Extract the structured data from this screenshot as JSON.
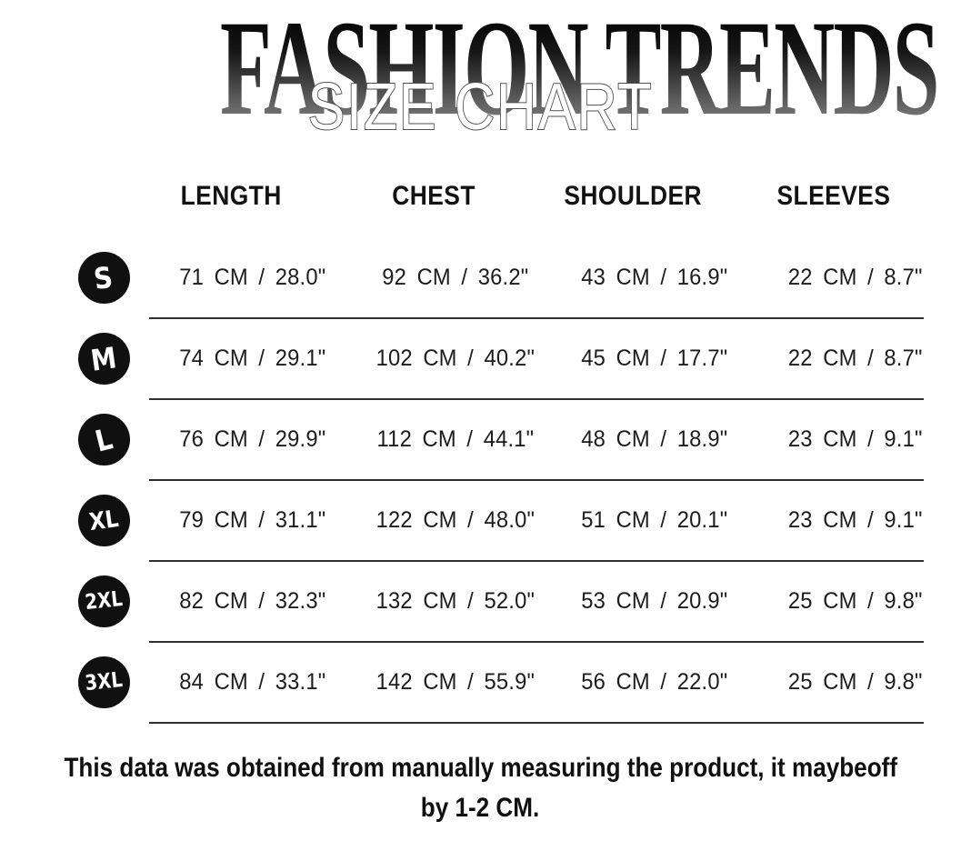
{
  "header": {
    "title": "FASHION TRENDS",
    "subtitle": "SIZE CHART"
  },
  "table": {
    "columns": [
      "LENGTH",
      "CHEST",
      "SHOULDER",
      "SLEEVES"
    ],
    "rows": [
      {
        "size": "S",
        "length": "71 CM / 28.0\"",
        "chest": "92 CM / 36.2\"",
        "shoulder": "43 CM / 16.9\"",
        "sleeves": "22 CM / 8.7\""
      },
      {
        "size": "M",
        "length": "74 CM / 29.1\"",
        "chest": "102 CM / 40.2\"",
        "shoulder": "45 CM / 17.7\"",
        "sleeves": "22 CM / 8.7\""
      },
      {
        "size": "L",
        "length": "76 CM / 29.9\"",
        "chest": "112 CM / 44.1\"",
        "shoulder": "48 CM / 18.9\"",
        "sleeves": "23 CM / 9.1\""
      },
      {
        "size": "XL",
        "length": "79 CM / 31.1\"",
        "chest": "122 CM / 48.0\"",
        "shoulder": "51 CM / 20.1\"",
        "sleeves": "23 CM / 9.1\""
      },
      {
        "size": "2XL",
        "length": "82 CM / 32.3\"",
        "chest": "132 CM / 52.0\"",
        "shoulder": "53 CM / 20.9\"",
        "sleeves": "25 CM / 9.8\""
      },
      {
        "size": "3XL",
        "length": "84 CM / 33.1\"",
        "chest": "142 CM / 55.9\"",
        "shoulder": "56 CM / 22.0\"",
        "sleeves": "25 CM / 9.8\""
      }
    ]
  },
  "note": {
    "line1": "This data was obtained from manually measuring the product, it maybeoff",
    "line2": "by 1-2 CM."
  },
  "colors": {
    "background": "#ffffff",
    "badge": "#101010",
    "text": "#1c1c1c",
    "divider": "#2e2e2e",
    "title_gradient_top": "#000000",
    "title_gradient_bottom": "#8d8d8d",
    "subtitle_outline": "#4f4f4f",
    "subtitle_fill": "#ffffff"
  }
}
